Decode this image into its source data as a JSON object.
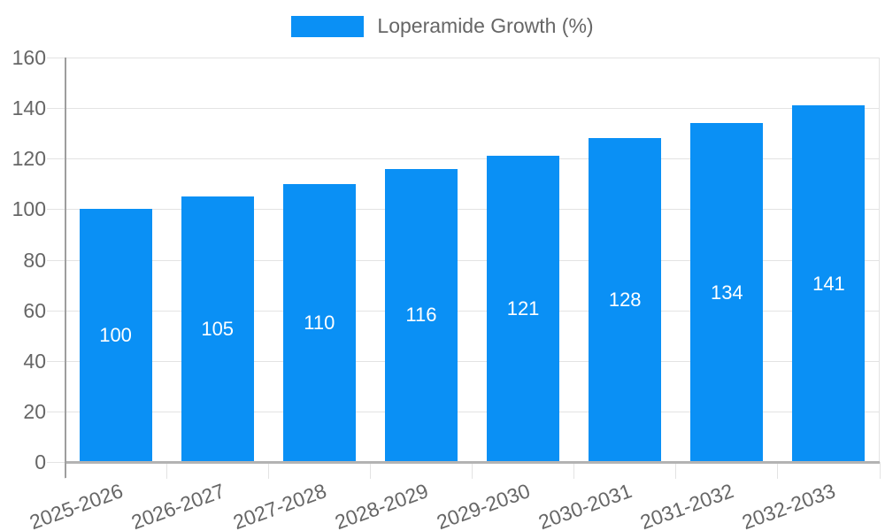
{
  "chart_data": {
    "type": "bar",
    "title": "Loperamide Growth (%)",
    "legend": {
      "position": "top",
      "label": "Loperamide Growth (%)"
    },
    "categories": [
      "2025-2026",
      "2026-2027",
      "2027-2028",
      "2028-2029",
      "2029-2030",
      "2030-2031",
      "2031-2032",
      "2032-2033"
    ],
    "values": [
      100,
      105,
      110,
      116,
      121,
      128,
      134,
      141
    ],
    "value_labels_shown": true,
    "xlabel": "",
    "ylabel": "",
    "ylim": [
      0,
      160
    ],
    "ytick_step": 20,
    "yticks": [
      0,
      20,
      40,
      60,
      80,
      100,
      120,
      140,
      160
    ],
    "grid": true,
    "colors": {
      "bar": "#0a90f5",
      "value_label": "#ffffff",
      "axis_text": "#666666",
      "gridline": "#e3e3e3",
      "y_axis_line": "#9e9e9e",
      "x_axis_line": "#b3b3b3"
    }
  }
}
